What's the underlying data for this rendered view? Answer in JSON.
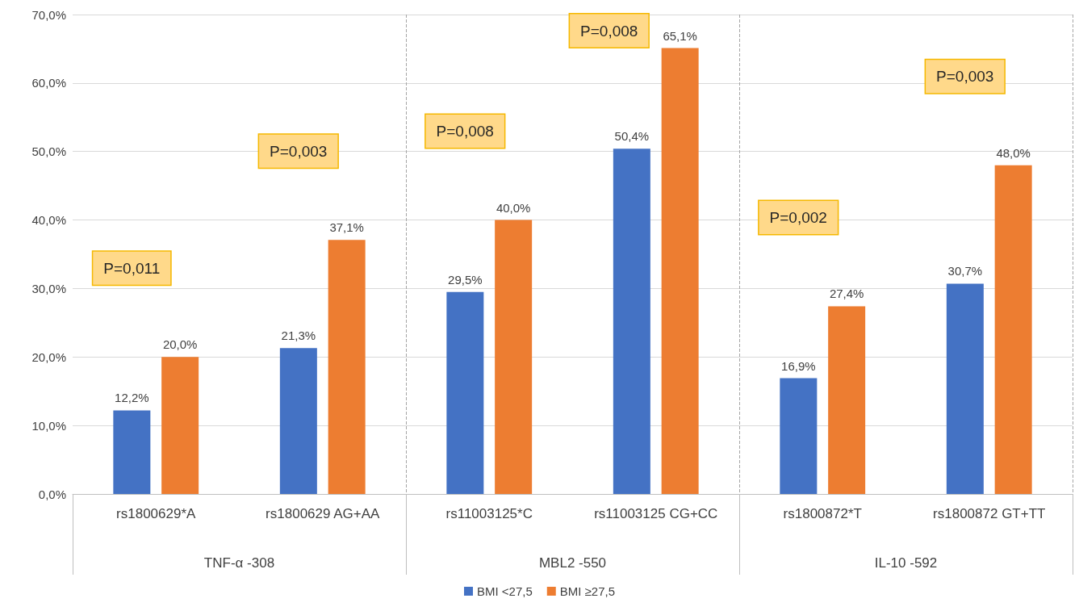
{
  "chart_data": {
    "type": "bar",
    "categories": [
      "rs1800629*A",
      "rs1800629 AG+AA",
      "rs11003125*C",
      "rs11003125 CG+CC",
      "rs1800872*T",
      "rs1800872 GT+TT"
    ],
    "series": [
      {
        "name": "BMI <27,5",
        "color": "#4472c4",
        "values": [
          12.2,
          21.3,
          29.5,
          50.4,
          16.9,
          30.7
        ],
        "value_labels": [
          "12,2%",
          "21,3%",
          "29,5%",
          "50,4%",
          "16,9%",
          "30,7%"
        ]
      },
      {
        "name": "BMI ≥27,5",
        "color": "#ed7d31",
        "values": [
          20.0,
          37.1,
          40.0,
          65.1,
          27.4,
          48.0
        ],
        "value_labels": [
          "20,0%",
          "37,1%",
          "40,0%",
          "65,1%",
          "27,4%",
          "48,0%"
        ]
      }
    ],
    "ylim": [
      0,
      70
    ],
    "yticks": [
      {
        "value": 0,
        "label": "0,0%"
      },
      {
        "value": 10,
        "label": "10,0%"
      },
      {
        "value": 20,
        "label": "20,0%"
      },
      {
        "value": 30,
        "label": "30,0%"
      },
      {
        "value": 40,
        "label": "40,0%"
      },
      {
        "value": 50,
        "label": "50,0%"
      },
      {
        "value": 60,
        "label": "60,0%"
      },
      {
        "value": 70,
        "label": "70,0%"
      }
    ],
    "grid": "y",
    "legend": "bottom",
    "annotations": [
      "TNF-α -308",
      "MBL2 -550",
      "IL-10 -592",
      "P=0,011",
      "P=0,003",
      "P=0,008",
      "P=0,008",
      "P=0,002",
      "P=0,003"
    ]
  }
}
